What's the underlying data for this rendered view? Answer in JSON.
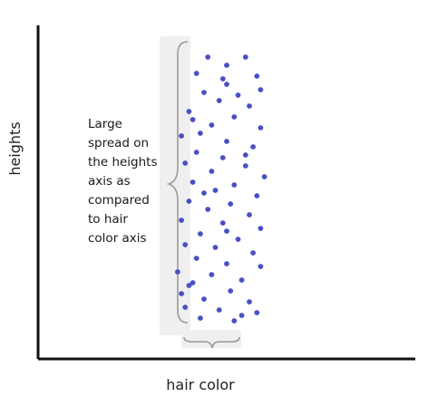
{
  "chart_data": {
    "type": "scatter",
    "xlabel": "hair color",
    "ylabel": "heights",
    "grid": false,
    "annotation": {
      "lines": [
        "Large",
        "spread on",
        "the heights",
        "axis as",
        "compared",
        "to hair",
        "color axis"
      ]
    },
    "colors": {
      "points": "#4a4fc4",
      "axes": "#111111",
      "brace": "#9a9a9a",
      "highlight": "#efefef"
    },
    "points": [
      {
        "x": 4.5,
        "y": 98
      },
      {
        "x": 5.5,
        "y": 98
      },
      {
        "x": 5.0,
        "y": 95
      },
      {
        "x": 4.2,
        "y": 92
      },
      {
        "x": 5.8,
        "y": 91
      },
      {
        "x": 5.0,
        "y": 88
      },
      {
        "x": 4.4,
        "y": 85
      },
      {
        "x": 5.9,
        "y": 86
      },
      {
        "x": 4.8,
        "y": 82
      },
      {
        "x": 5.6,
        "y": 80
      },
      {
        "x": 4.0,
        "y": 78
      },
      {
        "x": 5.2,
        "y": 76
      },
      {
        "x": 4.6,
        "y": 73
      },
      {
        "x": 5.9,
        "y": 72
      },
      {
        "x": 4.3,
        "y": 70
      },
      {
        "x": 3.8,
        "y": 69
      },
      {
        "x": 5.0,
        "y": 67
      },
      {
        "x": 5.7,
        "y": 65
      },
      {
        "x": 4.2,
        "y": 63
      },
      {
        "x": 4.9,
        "y": 61
      },
      {
        "x": 3.9,
        "y": 59
      },
      {
        "x": 5.5,
        "y": 58
      },
      {
        "x": 4.6,
        "y": 56
      },
      {
        "x": 6.0,
        "y": 54
      },
      {
        "x": 4.1,
        "y": 52
      },
      {
        "x": 5.2,
        "y": 51
      },
      {
        "x": 4.7,
        "y": 49
      },
      {
        "x": 5.8,
        "y": 47
      },
      {
        "x": 4.0,
        "y": 45
      },
      {
        "x": 5.1,
        "y": 44
      },
      {
        "x": 4.5,
        "y": 42
      },
      {
        "x": 5.6,
        "y": 40
      },
      {
        "x": 3.8,
        "y": 38
      },
      {
        "x": 4.9,
        "y": 37
      },
      {
        "x": 5.9,
        "y": 35
      },
      {
        "x": 4.3,
        "y": 33
      },
      {
        "x": 5.3,
        "y": 31
      },
      {
        "x": 3.9,
        "y": 29
      },
      {
        "x": 4.7,
        "y": 28
      },
      {
        "x": 5.7,
        "y": 26
      },
      {
        "x": 4.2,
        "y": 24
      },
      {
        "x": 5.0,
        "y": 22
      },
      {
        "x": 5.9,
        "y": 21
      },
      {
        "x": 3.7,
        "y": 19
      },
      {
        "x": 4.6,
        "y": 18
      },
      {
        "x": 5.4,
        "y": 16
      },
      {
        "x": 4.0,
        "y": 14
      },
      {
        "x": 5.1,
        "y": 12
      },
      {
        "x": 3.8,
        "y": 11
      },
      {
        "x": 4.4,
        "y": 9
      },
      {
        "x": 5.6,
        "y": 8
      },
      {
        "x": 3.9,
        "y": 6
      },
      {
        "x": 4.8,
        "y": 5
      },
      {
        "x": 5.8,
        "y": 4
      },
      {
        "x": 4.3,
        "y": 2
      },
      {
        "x": 5.2,
        "y": 1
      },
      {
        "x": 4.9,
        "y": 90
      },
      {
        "x": 5.3,
        "y": 84
      },
      {
        "x": 4.1,
        "y": 75
      },
      {
        "x": 5.5,
        "y": 62
      },
      {
        "x": 4.4,
        "y": 48
      },
      {
        "x": 5.0,
        "y": 34
      },
      {
        "x": 4.1,
        "y": 15
      },
      {
        "x": 5.4,
        "y": 3
      }
    ]
  }
}
